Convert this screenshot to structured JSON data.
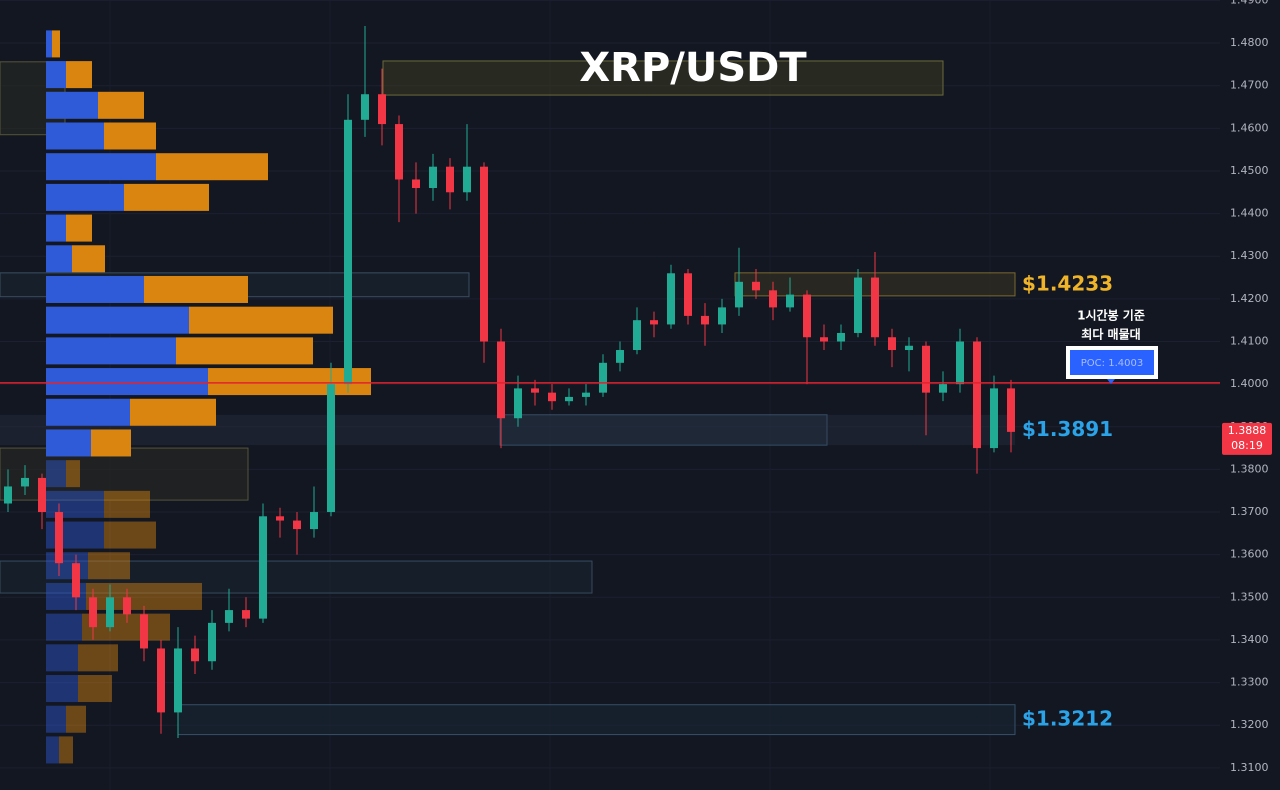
{
  "chart_data": {
    "type": "candlestick",
    "title": "XRP/USDT",
    "up_color": "#22ab94",
    "down_color": "#f23645",
    "ylim": [
      1.3048,
      1.4901
    ],
    "yticks": [
      {
        "value": 1.31,
        "label": "1.3100"
      },
      {
        "value": 1.32,
        "label": "1.3200"
      },
      {
        "value": 1.33,
        "label": "1.3300"
      },
      {
        "value": 1.34,
        "label": "1.3400"
      },
      {
        "value": 1.35,
        "label": "1.3500"
      },
      {
        "value": 1.36,
        "label": "1.3600"
      },
      {
        "value": 1.37,
        "label": "1.3700"
      },
      {
        "value": 1.38,
        "label": "1.3800"
      },
      {
        "value": 1.39,
        "label": "1.3900"
      },
      {
        "value": 1.4,
        "label": "1.4000"
      },
      {
        "value": 1.41,
        "label": "1.4100"
      },
      {
        "value": 1.42,
        "label": "1.4200"
      },
      {
        "value": 1.43,
        "label": "1.4300"
      },
      {
        "value": 1.44,
        "label": "1.4400"
      },
      {
        "value": 1.45,
        "label": "1.4500"
      },
      {
        "value": 1.46,
        "label": "1.4600"
      },
      {
        "value": 1.47,
        "label": "1.4700"
      },
      {
        "value": 1.48,
        "label": "1.4800"
      },
      {
        "value": 1.49,
        "label": "1.4900"
      }
    ],
    "grid": true,
    "ohlc": [
      [
        1.372,
        1.38,
        1.37,
        1.376
      ],
      [
        1.376,
        1.381,
        1.374,
        1.378
      ],
      [
        1.378,
        1.379,
        1.366,
        1.37
      ],
      [
        1.37,
        1.372,
        1.355,
        1.358
      ],
      [
        1.358,
        1.36,
        1.347,
        1.35
      ],
      [
        1.35,
        1.352,
        1.34,
        1.343
      ],
      [
        1.343,
        1.353,
        1.342,
        1.35
      ],
      [
        1.35,
        1.352,
        1.344,
        1.346
      ],
      [
        1.346,
        1.348,
        1.335,
        1.338
      ],
      [
        1.338,
        1.34,
        1.318,
        1.323
      ],
      [
        1.323,
        1.343,
        1.317,
        1.338
      ],
      [
        1.338,
        1.341,
        1.332,
        1.335
      ],
      [
        1.335,
        1.347,
        1.333,
        1.344
      ],
      [
        1.344,
        1.352,
        1.342,
        1.347
      ],
      [
        1.347,
        1.35,
        1.343,
        1.345
      ],
      [
        1.345,
        1.372,
        1.344,
        1.369
      ],
      [
        1.369,
        1.371,
        1.364,
        1.368
      ],
      [
        1.368,
        1.37,
        1.36,
        1.366
      ],
      [
        1.366,
        1.376,
        1.364,
        1.37
      ],
      [
        1.37,
        1.405,
        1.369,
        1.4
      ],
      [
        1.4,
        1.468,
        1.398,
        1.462
      ],
      [
        1.462,
        1.484,
        1.458,
        1.468
      ],
      [
        1.468,
        1.474,
        1.456,
        1.461
      ],
      [
        1.461,
        1.463,
        1.438,
        1.448
      ],
      [
        1.448,
        1.452,
        1.44,
        1.446
      ],
      [
        1.446,
        1.454,
        1.443,
        1.451
      ],
      [
        1.451,
        1.453,
        1.441,
        1.445
      ],
      [
        1.445,
        1.461,
        1.443,
        1.451
      ],
      [
        1.451,
        1.452,
        1.405,
        1.41
      ],
      [
        1.41,
        1.413,
        1.385,
        1.392
      ],
      [
        1.392,
        1.402,
        1.39,
        1.399
      ],
      [
        1.399,
        1.401,
        1.395,
        1.398
      ],
      [
        1.398,
        1.4,
        1.394,
        1.396
      ],
      [
        1.396,
        1.399,
        1.395,
        1.397
      ],
      [
        1.397,
        1.4,
        1.395,
        1.398
      ],
      [
        1.398,
        1.407,
        1.397,
        1.405
      ],
      [
        1.405,
        1.41,
        1.403,
        1.408
      ],
      [
        1.408,
        1.418,
        1.407,
        1.415
      ],
      [
        1.415,
        1.417,
        1.411,
        1.414
      ],
      [
        1.414,
        1.428,
        1.413,
        1.426
      ],
      [
        1.426,
        1.427,
        1.414,
        1.416
      ],
      [
        1.416,
        1.419,
        1.409,
        1.414
      ],
      [
        1.414,
        1.42,
        1.412,
        1.418
      ],
      [
        1.418,
        1.432,
        1.416,
        1.424
      ],
      [
        1.424,
        1.427,
        1.42,
        1.422
      ],
      [
        1.422,
        1.424,
        1.415,
        1.418
      ],
      [
        1.418,
        1.425,
        1.417,
        1.421
      ],
      [
        1.421,
        1.422,
        1.4,
        1.411
      ],
      [
        1.411,
        1.414,
        1.408,
        1.41
      ],
      [
        1.41,
        1.414,
        1.408,
        1.412
      ],
      [
        1.412,
        1.427,
        1.411,
        1.425
      ],
      [
        1.425,
        1.431,
        1.409,
        1.411
      ],
      [
        1.411,
        1.413,
        1.404,
        1.408
      ],
      [
        1.408,
        1.411,
        1.403,
        1.409
      ],
      [
        1.409,
        1.41,
        1.388,
        1.398
      ],
      [
        1.398,
        1.403,
        1.396,
        1.4
      ],
      [
        1.4,
        1.413,
        1.398,
        1.41
      ],
      [
        1.41,
        1.411,
        1.379,
        1.385
      ],
      [
        1.385,
        1.402,
        1.384,
        1.399
      ],
      [
        1.399,
        1.401,
        1.384,
        1.3888
      ]
    ],
    "volume_profile": {
      "row_prices": [
        1.4798,
        1.4726,
        1.4654,
        1.4582,
        1.451,
        1.4438,
        1.4366,
        1.4294,
        1.4222,
        1.415,
        1.4078,
        1.4006,
        1.3934,
        1.3862,
        1.379,
        1.3718,
        1.3646,
        1.3574,
        1.3502,
        1.343,
        1.3358,
        1.3286,
        1.3214,
        1.3142
      ],
      "buy": [
        6,
        20,
        52,
        58,
        110,
        78,
        20,
        26,
        98,
        143,
        130,
        162,
        84,
        45,
        20,
        58,
        58,
        42,
        40,
        36,
        32,
        32,
        20,
        13
      ],
      "sell": [
        8,
        26,
        46,
        52,
        112,
        85,
        26,
        33,
        104,
        144,
        137,
        163,
        86,
        40,
        14,
        46,
        52,
        42,
        116,
        88,
        40,
        34,
        20,
        14
      ],
      "buy_color": "#2f5bd8",
      "sell_color": "#d9850f"
    },
    "zones": [
      {
        "range": [
          1.4758,
          1.4678
        ]
      },
      {
        "range": [
          1.4261,
          1.4207
        ]
      },
      {
        "range": [
          1.3928,
          1.3857
        ]
      },
      {
        "range": [
          1.3248,
          1.3178
        ]
      },
      {
        "range": [
          1.4756,
          1.4585
        ]
      },
      {
        "range": [
          1.4261,
          1.4205
        ]
      },
      {
        "range": [
          1.385,
          1.3728
        ]
      },
      {
        "range": [
          1.3585,
          1.351
        ]
      }
    ],
    "levels": [
      {
        "value": 1.4233,
        "label": "$1.4233",
        "color": "#f0b429"
      },
      {
        "value": 1.3891,
        "label": "$1.3891",
        "color": "#2aa3e8"
      },
      {
        "value": 1.3212,
        "label": "$1.3212",
        "color": "#2aa3e8"
      }
    ],
    "poc": {
      "value": 1.4003,
      "label": "POC: 1.4003",
      "color": "#e3222d"
    },
    "annotation": [
      "1시간봉 기준",
      "최다 매물대"
    ],
    "last_price": 1.3888,
    "countdown": "08:19"
  }
}
